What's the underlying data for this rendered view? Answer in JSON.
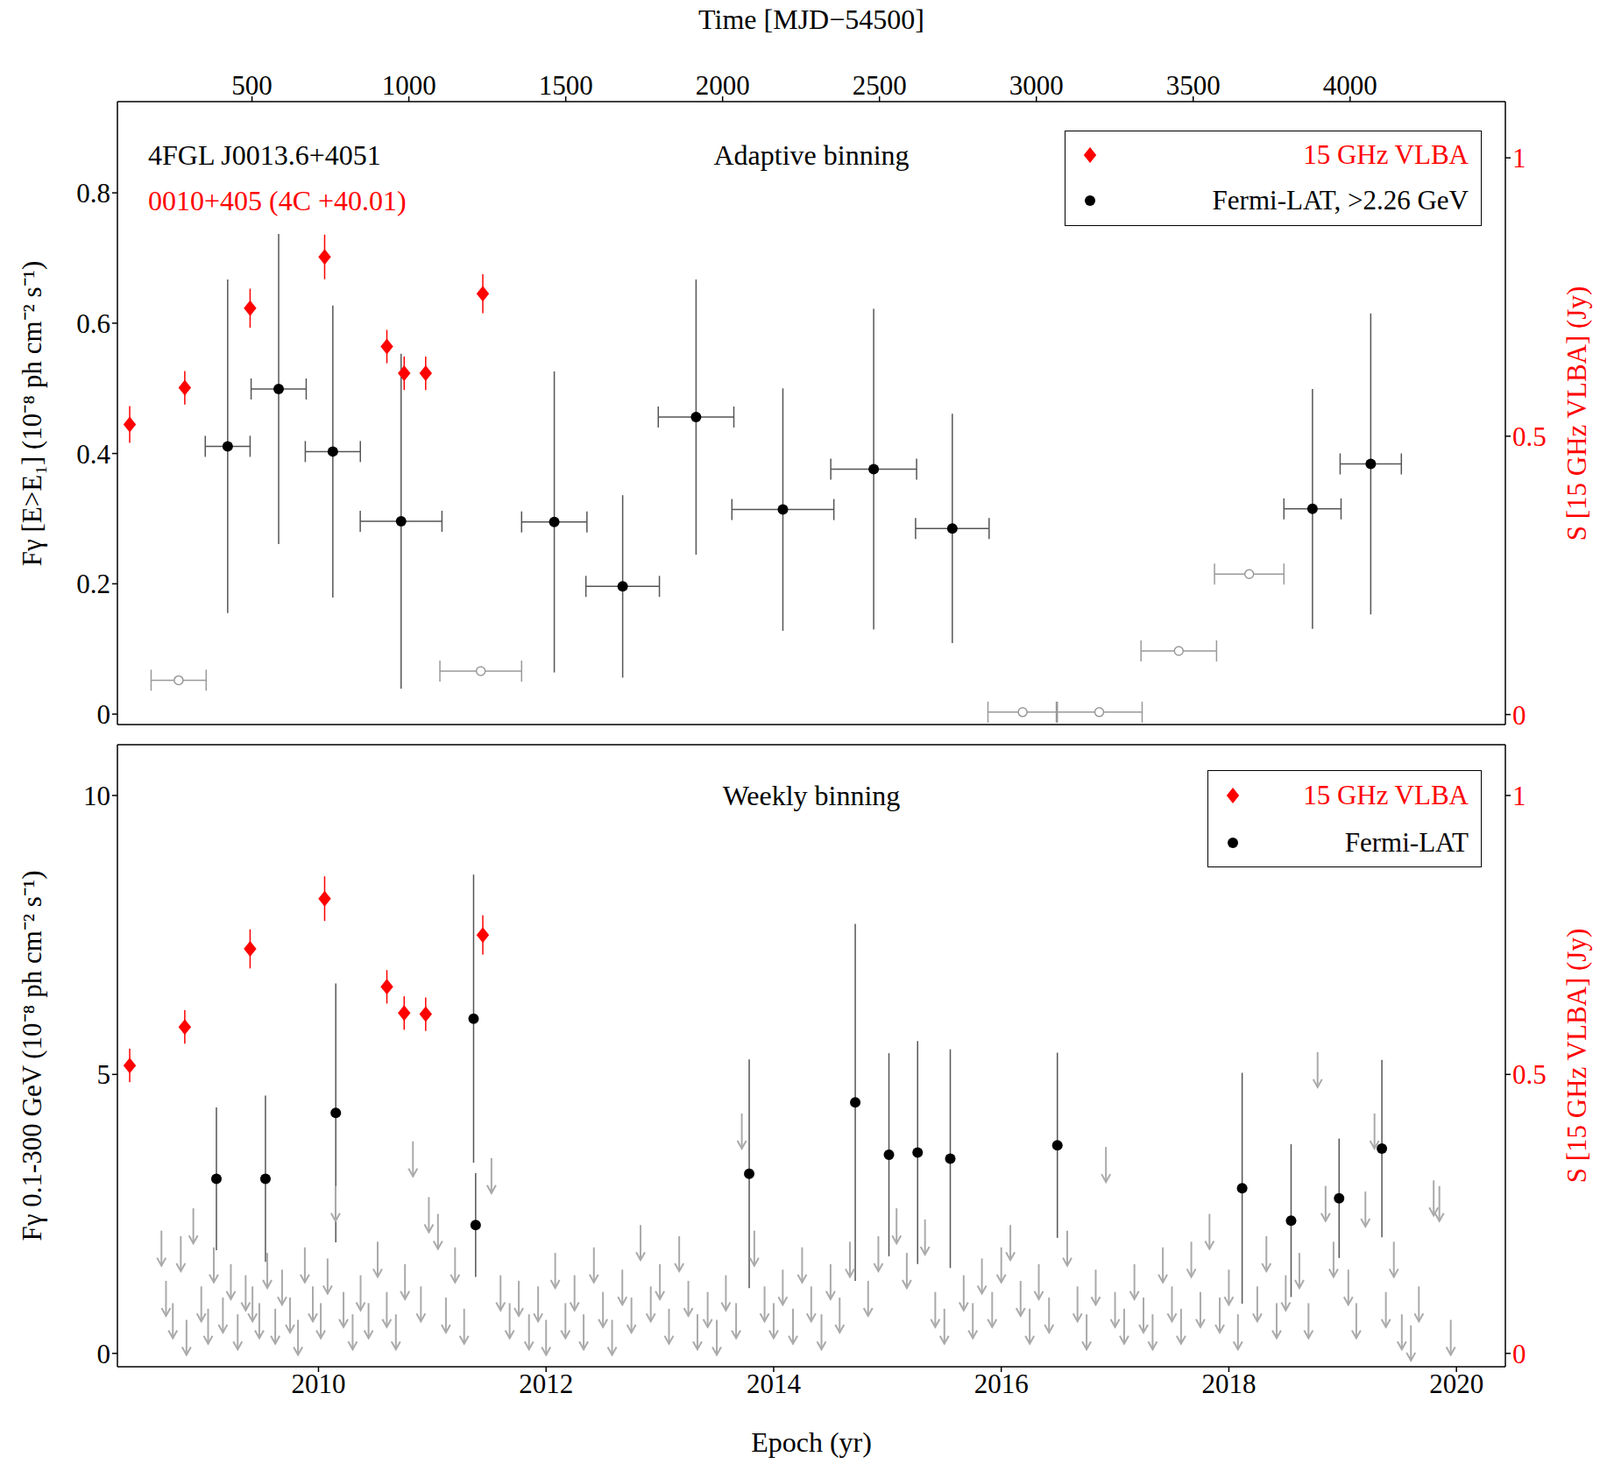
{
  "chart_data": [
    {
      "type": "scatter",
      "title": "Adaptive binning",
      "annotations": [
        {
          "text": "4FGL J0013.6+4051",
          "color": "#000000"
        },
        {
          "text": "0010+405 (4C +40.01)",
          "color": "#ff0000"
        }
      ],
      "x2_label": "Time [MJD−54500]",
      "x2lim": [
        71,
        4495
      ],
      "x2ticks": [
        500,
        1000,
        1500,
        2000,
        2500,
        3000,
        3500,
        4000
      ],
      "xlim": [
        2008.233,
        2020.43
      ],
      "y_label": "Fγ [E>E₁] (10⁻⁸ ph cm⁻² s⁻¹)",
      "ylim": [
        -0.016,
        0.94
      ],
      "yticks": [
        0,
        0.2,
        0.4,
        0.6,
        0.8
      ],
      "y2_label": "S [15 GHz VLBA] (Jy)",
      "y2lim": [
        -0.018,
        1.101
      ],
      "y2ticks": [
        0,
        0.5,
        1
      ],
      "legend": "top right",
      "series": [
        {
          "name": "15 GHz VLBA",
          "color": "#ff0000",
          "marker": "diamond",
          "axis": "y2",
          "x": [
            2008.341,
            2008.825,
            2009.399,
            2010.054,
            2010.601,
            2010.753,
            2010.942,
            2011.444
          ],
          "values": [
            0.521,
            0.587,
            0.73,
            0.822,
            0.661,
            0.613,
            0.613,
            0.756
          ],
          "y_err": [
            0.033,
            0.03,
            0.035,
            0.04,
            0.03,
            0.03,
            0.03,
            0.035
          ]
        },
        {
          "color": "#999999",
          "marker": "open_circle",
          "x": [
            2008.771,
            2011.426,
            2016.188,
            2016.861,
            2017.56,
            2018.179
          ],
          "values": [
            0.052,
            0.066,
            0.003,
            0.003,
            0.097,
            0.215
          ],
          "x_err": [
            0.242,
            0.359,
            0.305,
            0.377,
            0.332,
            0.305
          ]
        },
        {
          "name": "Fermi-LAT, >2.26 GeV",
          "color": "#000000",
          "marker": "circle",
          "x": [
            2009.202,
            2009.65,
            2010.126,
            2010.726,
            2012.072,
            2012.673,
            2013.318,
            2014.081,
            2014.879,
            2015.57,
            2018.735,
            2019.247
          ],
          "values": [
            0.411,
            0.499,
            0.403,
            0.296,
            0.295,
            0.196,
            0.456,
            0.314,
            0.376,
            0.285,
            0.315,
            0.384
          ],
          "x_err": [
            0.197,
            0.242,
            0.242,
            0.359,
            0.287,
            0.323,
            0.332,
            0.448,
            0.377,
            0.323,
            0.251,
            0.269
          ],
          "y_err": [
            0.256,
            0.238,
            0.224,
            0.257,
            0.231,
            0.14,
            0.211,
            0.186,
            0.246,
            0.176,
            0.184,
            0.231
          ]
        }
      ]
    },
    {
      "type": "scatter",
      "title": "Weekly binning",
      "x_label": "Epoch (yr)",
      "xlim": [
        2008.233,
        2020.43
      ],
      "xticks": [
        2010,
        2012,
        2014,
        2016,
        2018,
        2020
      ],
      "y_label": "Fγ 0.1-300 GeV (10⁻⁸ ph cm⁻² s⁻¹)",
      "ylim": [
        -0.24,
        10.91
      ],
      "yticks": [
        0,
        5,
        10
      ],
      "y2_label": "S [15 GHz VLBA] (Jy)",
      "y2lim": [
        -0.024,
        1.091
      ],
      "y2ticks": [
        0,
        0.5,
        1
      ],
      "legend": "top right",
      "series": [
        {
          "color": "#aaaaaa",
          "marker": "arrow",
          "x": [
            2008.62,
            2008.66,
            2008.72,
            2008.79,
            2008.84,
            2008.9,
            2008.97,
            2009.03,
            2009.08,
            2009.16,
            2009.23,
            2009.29,
            2009.36,
            2009.42,
            2009.48,
            2009.55,
            2009.62,
            2009.68,
            2009.75,
            2009.82,
            2009.88,
            2009.95,
            2010.02,
            2010.08,
            2010.15,
            2010.22,
            2010.3,
            2010.37,
            2010.44,
            2010.52,
            2010.6,
            2010.68,
            2010.76,
            2010.83,
            2010.9,
            2010.97,
            2011.05,
            2011.12,
            2011.2,
            2011.28,
            2011.52,
            2011.6,
            2011.68,
            2011.76,
            2011.85,
            2011.93,
            2012.0,
            2012.08,
            2012.17,
            2012.25,
            2012.33,
            2012.42,
            2012.5,
            2012.58,
            2012.67,
            2012.75,
            2012.83,
            2012.92,
            2013.0,
            2013.08,
            2013.17,
            2013.25,
            2013.33,
            2013.42,
            2013.5,
            2013.58,
            2013.67,
            2013.72,
            2013.83,
            2013.92,
            2014.0,
            2014.08,
            2014.17,
            2014.25,
            2014.33,
            2014.42,
            2014.5,
            2014.58,
            2014.67,
            2014.83,
            2014.92,
            2015.08,
            2015.17,
            2015.33,
            2015.42,
            2015.5,
            2015.67,
            2015.75,
            2015.83,
            2015.92,
            2016.0,
            2016.08,
            2016.17,
            2016.25,
            2016.33,
            2016.42,
            2016.58,
            2016.67,
            2016.75,
            2016.83,
            2016.92,
            2017.0,
            2017.08,
            2017.17,
            2017.25,
            2017.33,
            2017.42,
            2017.5,
            2017.58,
            2017.67,
            2017.75,
            2017.83,
            2017.92,
            2018.0,
            2018.08,
            2018.25,
            2018.33,
            2018.42,
            2018.5,
            2018.62,
            2018.7,
            2018.78,
            2018.85,
            2018.92,
            2019.05,
            2019.12,
            2019.2,
            2019.28,
            2019.38,
            2019.45,
            2019.52,
            2019.6,
            2019.67,
            2019.8,
            2019.85,
            2019.95
          ],
          "values": [
            2.2,
            1.3,
            0.9,
            2.1,
            0.6,
            2.6,
            1.2,
            0.8,
            1.9,
            1.0,
            1.6,
            0.7,
            1.4,
            1.2,
            0.9,
            1.8,
            0.8,
            1.5,
            1.0,
            0.6,
            1.9,
            1.2,
            0.9,
            1.7,
            3.0,
            1.1,
            0.7,
            1.4,
            0.9,
            2.0,
            1.1,
            0.7,
            1.6,
            3.8,
            1.2,
            2.8,
            2.5,
            1.0,
            1.9,
            0.8,
            3.5,
            1.4,
            0.9,
            1.3,
            0.7,
            1.2,
            0.6,
            1.8,
            0.9,
            1.4,
            0.7,
            1.9,
            1.1,
            0.6,
            1.5,
            1.0,
            2.3,
            1.2,
            1.6,
            0.8,
            2.1,
            1.3,
            0.7,
            1.1,
            0.6,
            1.4,
            0.9,
            4.3,
            2.2,
            1.2,
            0.9,
            1.5,
            0.8,
            1.9,
            1.2,
            0.7,
            1.6,
            1.0,
            2.0,
            1.3,
            2.1,
            2.6,
            1.8,
            2.4,
            1.1,
            0.8,
            1.4,
            0.9,
            1.7,
            1.1,
            1.9,
            2.3,
            1.3,
            0.8,
            1.6,
            1.0,
            2.2,
            1.2,
            0.7,
            1.5,
            3.7,
            1.1,
            0.8,
            1.6,
            1.0,
            0.7,
            1.9,
            1.2,
            0.8,
            2.0,
            1.1,
            2.5,
            1.0,
            1.5,
            0.7,
            1.2,
            2.1,
            0.9,
            1.4,
            1.8,
            0.9,
            5.4,
            3.0,
            2.0,
            1.5,
            0.9,
            2.9,
            4.3,
            1.1,
            2.0,
            0.7,
            0.5,
            1.2,
            3.1,
            3.0,
            0.6
          ]
        },
        {
          "name": "15 GHz VLBA",
          "color": "#ff0000",
          "marker": "diamond",
          "axis": "y2",
          "x": [
            2008.341,
            2008.825,
            2009.399,
            2010.054,
            2010.601,
            2010.753,
            2010.942,
            2011.444
          ],
          "values": [
            0.516,
            0.585,
            0.725,
            0.815,
            0.657,
            0.61,
            0.608,
            0.75
          ],
          "y_err": [
            0.03,
            0.03,
            0.035,
            0.04,
            0.03,
            0.03,
            0.03,
            0.035
          ]
        },
        {
          "name": "Fermi-LAT",
          "color": "#000000",
          "marker": "circle",
          "x": [
            2009.103,
            2009.534,
            2010.152,
            2011.363,
            2011.381,
            2013.785,
            2014.717,
            2015.013,
            2015.265,
            2015.552,
            2016.493,
            2018.117,
            2018.547,
            2018.969,
            2019.345
          ],
          "values": [
            3.13,
            3.13,
            4.31,
            6.0,
            2.3,
            3.22,
            4.5,
            3.56,
            3.6,
            3.49,
            3.73,
            2.96,
            2.38,
            2.78,
            3.67
          ],
          "y_err": [
            1.28,
            1.49,
            2.32,
            2.58,
            0.93,
            2.05,
            3.2,
            1.82,
            2.0,
            1.96,
            1.66,
            2.07,
            1.37,
            1.07,
            1.59
          ]
        }
      ]
    }
  ]
}
